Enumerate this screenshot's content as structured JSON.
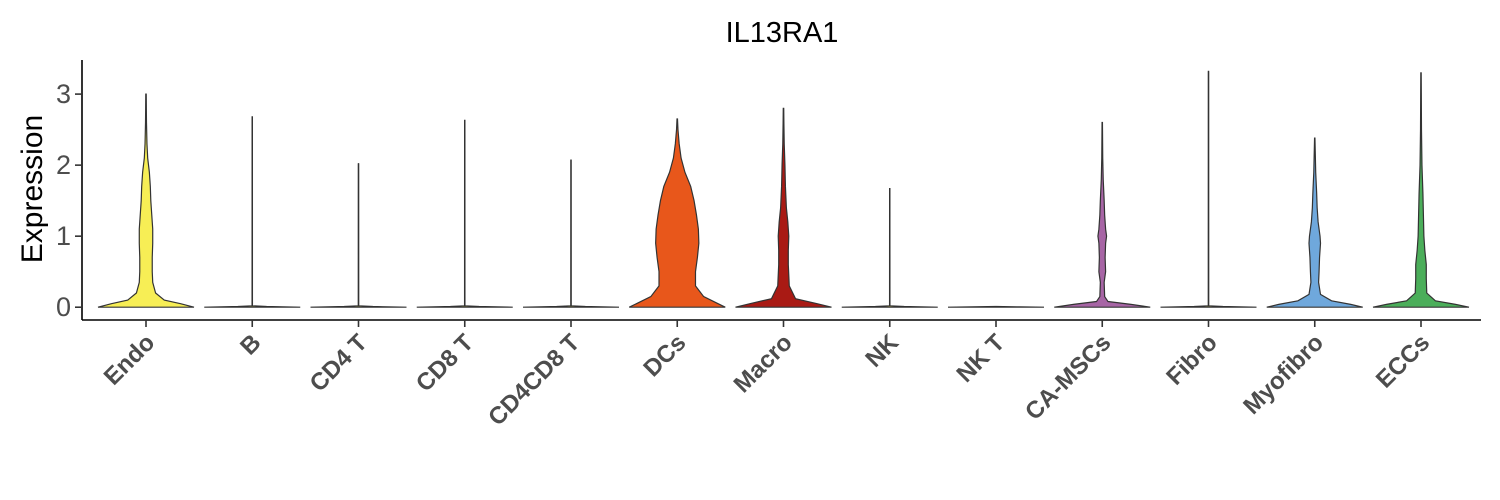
{
  "chart_data": {
    "type": "violin",
    "title": "IL13RA1",
    "xlabel": "",
    "ylabel": "Expression",
    "ylim": [
      -0.18,
      3.48
    ],
    "yticks": [
      0,
      1,
      2,
      3
    ],
    "grid": false,
    "legend": "none",
    "categories": [
      "Endo",
      "B",
      "CD4 T",
      "CD8 T",
      "CD4CD8 T",
      "DCs",
      "Macro",
      "NK",
      "NK T",
      "CA-MSCs",
      "Fibro",
      "Myofibro",
      "ECCs"
    ],
    "series": [
      {
        "category": "Endo",
        "color": "#F7EE55",
        "max": 3.0,
        "profile": [
          [
            0,
            1.0
          ],
          [
            0.05,
            0.72
          ],
          [
            0.1,
            0.38
          ],
          [
            0.2,
            0.2
          ],
          [
            0.35,
            0.14
          ],
          [
            0.5,
            0.13
          ],
          [
            0.7,
            0.13
          ],
          [
            0.9,
            0.14
          ],
          [
            1.1,
            0.14
          ],
          [
            1.3,
            0.12
          ],
          [
            1.5,
            0.1
          ],
          [
            1.7,
            0.09
          ],
          [
            1.9,
            0.07
          ],
          [
            2.1,
            0.035
          ],
          [
            2.3,
            0.02
          ],
          [
            2.6,
            0.01
          ],
          [
            3.0,
            0.004
          ]
        ]
      },
      {
        "category": "B",
        "color": "#F7EE55",
        "max": 2.68,
        "profile": [
          [
            0,
            1.0
          ],
          [
            0.01,
            0.3
          ],
          [
            0.02,
            0.004
          ],
          [
            2.68,
            0.003
          ]
        ]
      },
      {
        "category": "CD4 T",
        "color": "#F7EE55",
        "max": 2.02,
        "profile": [
          [
            0,
            1.0
          ],
          [
            0.01,
            0.3
          ],
          [
            0.02,
            0.004
          ],
          [
            2.02,
            0.003
          ]
        ]
      },
      {
        "category": "CD8 T",
        "color": "#F7EE55",
        "max": 2.63,
        "profile": [
          [
            0,
            1.0
          ],
          [
            0.01,
            0.3
          ],
          [
            0.02,
            0.004
          ],
          [
            2.63,
            0.003
          ]
        ]
      },
      {
        "category": "CD4CD8 T",
        "color": "#F7EE55",
        "max": 2.07,
        "profile": [
          [
            0,
            1.0
          ],
          [
            0.01,
            0.3
          ],
          [
            0.02,
            0.004
          ],
          [
            2.07,
            0.003
          ]
        ]
      },
      {
        "category": "DCs",
        "color": "#E8571B",
        "max": 2.65,
        "profile": [
          [
            0,
            1.0
          ],
          [
            0.05,
            0.85
          ],
          [
            0.15,
            0.55
          ],
          [
            0.3,
            0.38
          ],
          [
            0.5,
            0.38
          ],
          [
            0.7,
            0.42
          ],
          [
            0.9,
            0.45
          ],
          [
            1.1,
            0.44
          ],
          [
            1.3,
            0.4
          ],
          [
            1.5,
            0.35
          ],
          [
            1.7,
            0.28
          ],
          [
            1.9,
            0.16
          ],
          [
            2.1,
            0.08
          ],
          [
            2.3,
            0.04
          ],
          [
            2.5,
            0.015
          ],
          [
            2.65,
            0.005
          ]
        ]
      },
      {
        "category": "Macro",
        "color": "#A91A14",
        "max": 2.8,
        "profile": [
          [
            0,
            1.0
          ],
          [
            0.05,
            0.7
          ],
          [
            0.12,
            0.25
          ],
          [
            0.3,
            0.12
          ],
          [
            0.6,
            0.1
          ],
          [
            0.8,
            0.1
          ],
          [
            1.0,
            0.11
          ],
          [
            1.2,
            0.09
          ],
          [
            1.4,
            0.06
          ],
          [
            1.7,
            0.04
          ],
          [
            2.0,
            0.03
          ],
          [
            2.3,
            0.015
          ],
          [
            2.6,
            0.008
          ],
          [
            2.8,
            0.004
          ]
        ]
      },
      {
        "category": "NK",
        "color": "#F7EE55",
        "max": 1.67,
        "profile": [
          [
            0,
            1.0
          ],
          [
            0.01,
            0.3
          ],
          [
            0.02,
            0.004
          ],
          [
            1.67,
            0.003
          ]
        ]
      },
      {
        "category": "NK T",
        "color": "#F7EE55",
        "max": 0.01,
        "profile": [
          [
            0,
            1.0
          ],
          [
            0.005,
            0.5
          ],
          [
            0.01,
            0.01
          ]
        ]
      },
      {
        "category": "CA-MSCs",
        "color": "#A765A5",
        "max": 2.6,
        "profile": [
          [
            0,
            1.0
          ],
          [
            0.04,
            0.6
          ],
          [
            0.08,
            0.12
          ],
          [
            0.15,
            0.05
          ],
          [
            0.35,
            0.04
          ],
          [
            0.5,
            0.07
          ],
          [
            0.7,
            0.06
          ],
          [
            0.9,
            0.07
          ],
          [
            1.0,
            0.09
          ],
          [
            1.1,
            0.07
          ],
          [
            1.3,
            0.05
          ],
          [
            1.5,
            0.04
          ],
          [
            1.8,
            0.02
          ],
          [
            2.1,
            0.01
          ],
          [
            2.6,
            0.004
          ]
        ]
      },
      {
        "category": "Fibro",
        "color": "#F7EE55",
        "max": 3.32,
        "profile": [
          [
            0,
            1.0
          ],
          [
            0.01,
            0.3
          ],
          [
            0.02,
            0.004
          ],
          [
            3.32,
            0.003
          ]
        ]
      },
      {
        "category": "Myofibro",
        "color": "#6FA8DC",
        "max": 2.38,
        "profile": [
          [
            0,
            1.0
          ],
          [
            0.04,
            0.75
          ],
          [
            0.09,
            0.35
          ],
          [
            0.18,
            0.12
          ],
          [
            0.35,
            0.08
          ],
          [
            0.5,
            0.09
          ],
          [
            0.7,
            0.1
          ],
          [
            0.9,
            0.12
          ],
          [
            1.0,
            0.11
          ],
          [
            1.2,
            0.07
          ],
          [
            1.4,
            0.05
          ],
          [
            1.6,
            0.04
          ],
          [
            1.9,
            0.02
          ],
          [
            2.2,
            0.01
          ],
          [
            2.38,
            0.004
          ]
        ]
      },
      {
        "category": "ECCs",
        "color": "#4BAE5A",
        "max": 3.3,
        "profile": [
          [
            0,
            1.0
          ],
          [
            0.04,
            0.72
          ],
          [
            0.09,
            0.3
          ],
          [
            0.2,
            0.12
          ],
          [
            0.4,
            0.11
          ],
          [
            0.6,
            0.11
          ],
          [
            0.8,
            0.08
          ],
          [
            1.0,
            0.06
          ],
          [
            1.3,
            0.05
          ],
          [
            1.6,
            0.04
          ],
          [
            2.0,
            0.02
          ],
          [
            2.5,
            0.01
          ],
          [
            3.0,
            0.006
          ],
          [
            3.3,
            0.003
          ]
        ]
      }
    ]
  }
}
